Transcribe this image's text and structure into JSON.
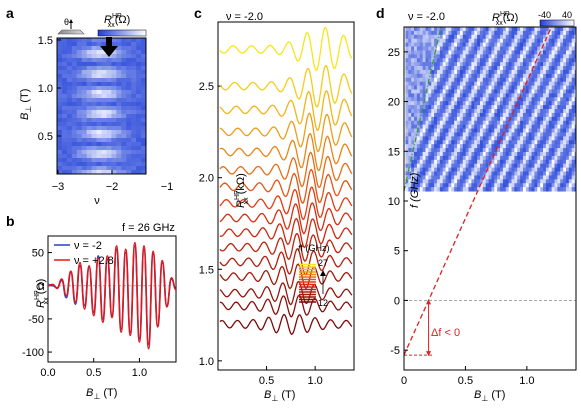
{
  "panel_labels": {
    "a": "a",
    "b": "b",
    "c": "c",
    "d": "d"
  },
  "colors": {
    "map_low": "#1f3fd8",
    "map_high": "#ffffff",
    "nu_neg2": "#2b3fc8",
    "nu_pos28": "#e01818",
    "trace_warm": "#f7e51b",
    "trace_cold": "#7a0a0a",
    "fit_green": "#3a9a3a",
    "fit_red": "#e02020"
  },
  "panel_a": {
    "ylabel_main": "B",
    "ylabel_sub": "⊥",
    "ylabel_unit": " (T)",
    "xlabel": "ν",
    "cbar_label_main": "R",
    "cbar_label_sup": "HP",
    "cbar_label_sub": "xx",
    "cbar_label_unit": "(Ω)",
    "inset_theta": "θ",
    "ytick_labels": [
      "1.5",
      "1.0",
      "0.5"
    ],
    "xtick_labels": [
      "−3",
      "−2",
      "−1"
    ],
    "chart_data": {
      "type": "heatmap",
      "x_range": [
        -3,
        -1
      ],
      "y_range": [
        0.2,
        1.55
      ],
      "arrow_at_nu": -2
    }
  },
  "panel_b": {
    "title": "f = 26 GHz",
    "legend": [
      "ν = -2",
      "ν = +2.8"
    ],
    "ylabel_main": "R",
    "ylabel_sup": "HP",
    "ylabel_sub": "xx",
    "ylabel_unit": " (Ω)",
    "xlabel_main": "B",
    "xlabel_sub": "⊥",
    "xlabel_unit": "  (T)",
    "ytick_labels": [
      "50",
      "0",
      "-50",
      "-100"
    ],
    "xtick_labels": [
      "0.0",
      "0.5",
      "1.0"
    ],
    "chart_data": {
      "type": "line",
      "xlim": [
        0,
        1.4
      ],
      "ylim": [
        -115,
        75
      ],
      "series": [
        {
          "name": "ν = -2",
          "x": [
            0.0,
            0.05,
            0.1,
            0.15,
            0.2,
            0.25,
            0.3,
            0.35,
            0.4,
            0.45,
            0.5,
            0.55,
            0.6,
            0.65,
            0.7,
            0.75,
            0.8,
            0.85,
            0.9,
            0.95,
            1.0,
            1.05,
            1.1,
            1.15,
            1.2,
            1.25,
            1.3,
            1.35,
            1.4
          ],
          "y": [
            2,
            0,
            -3,
            8,
            -18,
            20,
            -28,
            30,
            -30,
            28,
            -40,
            45,
            -50,
            40,
            -45,
            55,
            -65,
            50,
            -70,
            60,
            -80,
            55,
            -88,
            48,
            -60,
            35,
            -30,
            10,
            -5
          ]
        },
        {
          "name": "ν = +2.8",
          "x": [
            0.0,
            0.05,
            0.1,
            0.15,
            0.2,
            0.25,
            0.3,
            0.35,
            0.4,
            0.45,
            0.5,
            0.55,
            0.6,
            0.65,
            0.7,
            0.75,
            0.8,
            0.85,
            0.9,
            0.95,
            1.0,
            1.05,
            1.1,
            1.15,
            1.2,
            1.25,
            1.3,
            1.35,
            1.4
          ],
          "y": [
            0,
            2,
            -4,
            10,
            -15,
            22,
            -25,
            35,
            -35,
            30,
            -45,
            42,
            -55,
            45,
            -48,
            60,
            -70,
            55,
            -75,
            65,
            -85,
            60,
            -95,
            52,
            -62,
            38,
            -32,
            12,
            -6
          ]
        }
      ]
    }
  },
  "panel_c": {
    "title": "ν = -2.0",
    "ylabel_main": "R",
    "ylabel_sup": "HP",
    "ylabel_sub": "xx",
    "ylabel_unit": " (kΩ)",
    "xlabel_main": "B",
    "xlabel_sub": "⊥",
    "xlabel_unit": "  (T)",
    "ytick_labels": [
      "2.5",
      "2.0",
      "1.5",
      "1.0"
    ],
    "xtick_labels": [
      "0.5",
      "1.0"
    ],
    "legend_title": "f (GHz)",
    "legend_top": "27",
    "legend_bottom": "12",
    "chart_data": {
      "type": "line",
      "xlim": [
        0,
        1.4
      ],
      "ylim": [
        0.95,
        2.85
      ],
      "n_traces": 16,
      "offsets_kohm": [
        1.2,
        1.3,
        1.37,
        1.46,
        1.54,
        1.62,
        1.7,
        1.78,
        1.86,
        1.95,
        2.04,
        2.14,
        2.25,
        2.37,
        2.5,
        2.7
      ],
      "freq_range_ghz": [
        12,
        27
      ]
    }
  },
  "panel_d": {
    "title": "ν = -2.0",
    "cbar_label_main": "R",
    "cbar_label_sup": "HP",
    "cbar_label_sub": "xx",
    "cbar_label_unit": "(Ω)",
    "cbar_ticks": [
      "-40",
      "40"
    ],
    "ylabel": "f (GHz)",
    "xlabel_main": "B",
    "xlabel_sub": "⊥",
    "xlabel_unit": "  (T)",
    "ytick_labels": [
      "25",
      "20",
      "15",
      "10",
      "5",
      "0",
      "-5"
    ],
    "xtick_labels": [
      "0",
      "0.5",
      "1.0"
    ],
    "annotation": "Δf  < 0",
    "chart_data": {
      "type": "heatmap",
      "xlim": [
        0,
        1.4
      ],
      "ylim": [
        -7,
        27.5
      ],
      "map_f_range": [
        11,
        27.5
      ],
      "red_fit_line": {
        "x": [
          0,
          1.2
        ],
        "y": [
          -5.5,
          27.5
        ]
      },
      "green_fit_line": {
        "x": [
          0,
          0.3
        ],
        "y": [
          11,
          27.5
        ]
      },
      "offset_delta_f": -5.5
    }
  }
}
